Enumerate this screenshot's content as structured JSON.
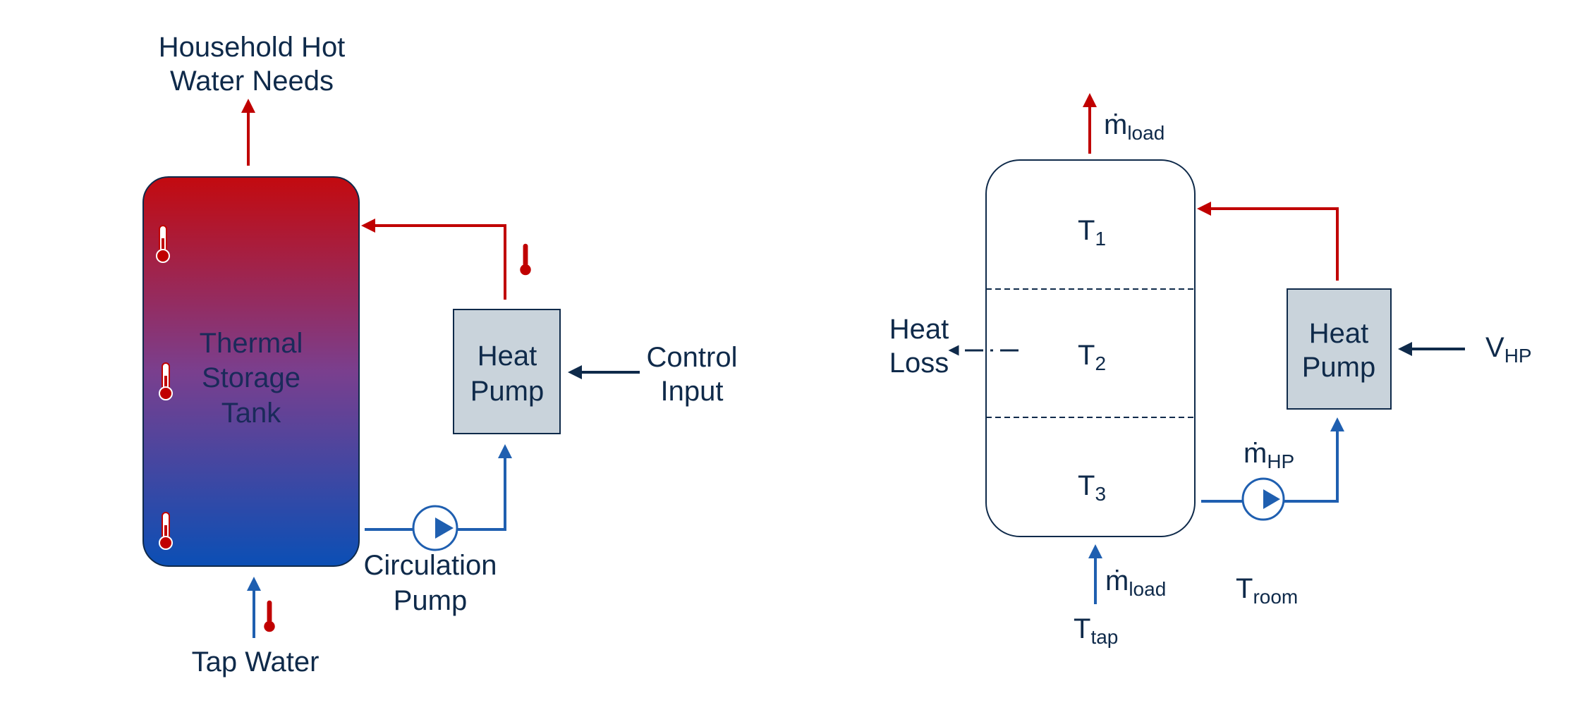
{
  "colors": {
    "hot": "#c00000",
    "cold": "#1f5fb0",
    "navy": "#0f2a4a",
    "box_fill": "#c9d3db",
    "tank_top": "#c30a0f",
    "tank_bottom": "#0b4fb5"
  },
  "left": {
    "household_line1": "Household Hot",
    "household_line2": "Water Needs",
    "tank_line1": "Thermal",
    "tank_line2": "Storage",
    "tank_line3": "Tank",
    "hp_line1": "Heat",
    "hp_line2": "Pump",
    "control_line1": "Control",
    "control_line2": "Input",
    "circ_line1": "Circulation",
    "circ_line2": "Pump",
    "tap_water": "Tap Water"
  },
  "right": {
    "m_dot_top": {
      "base": "ṁ",
      "sub": "load"
    },
    "t1": {
      "base": "T",
      "sub": "1"
    },
    "t2": {
      "base": "T",
      "sub": "2"
    },
    "t3": {
      "base": "T",
      "sub": "3"
    },
    "heat_loss_line1": "Heat",
    "heat_loss_line2": "Loss",
    "hp_line1": "Heat",
    "hp_line2": "Pump",
    "v_hp": {
      "base": "V",
      "sub": "HP"
    },
    "m_dot_hp": {
      "base": "ṁ",
      "sub": "HP"
    },
    "m_dot_bottom": {
      "base": "ṁ",
      "sub": "load"
    },
    "t_tap": {
      "base": "T",
      "sub": "tap"
    },
    "t_room": {
      "base": "T",
      "sub": "room"
    }
  }
}
